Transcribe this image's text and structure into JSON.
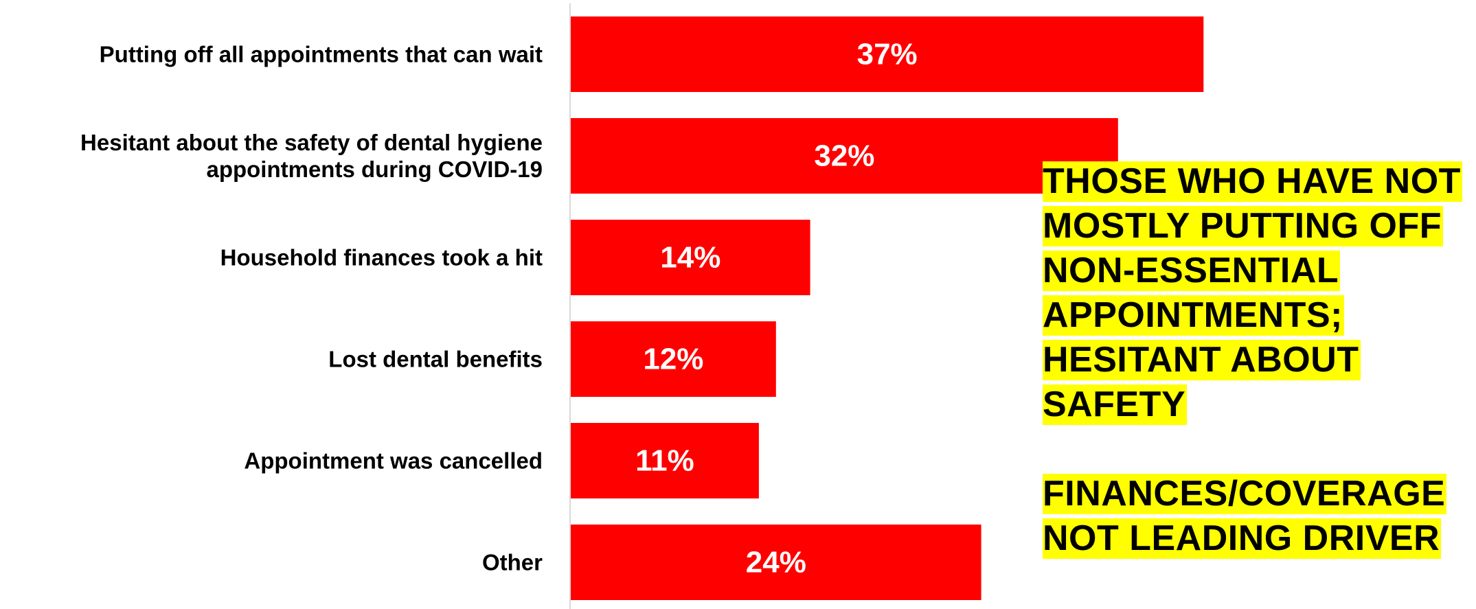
{
  "chart_data": {
    "type": "bar",
    "orientation": "horizontal",
    "categories": [
      [
        "Putting off all appointments that can wait"
      ],
      [
        "Hesitant about the safety of dental hygiene",
        "appointments during COVID-19"
      ],
      [
        "Household finances took a hit"
      ],
      [
        "Lost dental benefits"
      ],
      [
        "Appointment was cancelled"
      ],
      [
        "Other"
      ]
    ],
    "values": [
      37,
      32,
      14,
      12,
      11,
      24
    ],
    "value_labels": [
      "37%",
      "32%",
      "14%",
      "12%",
      "11%",
      "24%"
    ],
    "unit": "%",
    "xlim": [
      0,
      100
    ],
    "grid": false,
    "legend": "none",
    "bar_color": "#ff0000",
    "value_label_color": "#ffffff",
    "axis_line_color": "#d9d9d9"
  },
  "callout": {
    "highlight_color": "#ffff00",
    "paragraphs": [
      "THOSE WHO HAVE NOT MOSTLY PUTTING OFF NON-ESSENTIAL APPOINTMENTS; HESITANT ABOUT SAFETY",
      "FINANCES/COVERAGE NOT LEADING DRIVER"
    ]
  }
}
